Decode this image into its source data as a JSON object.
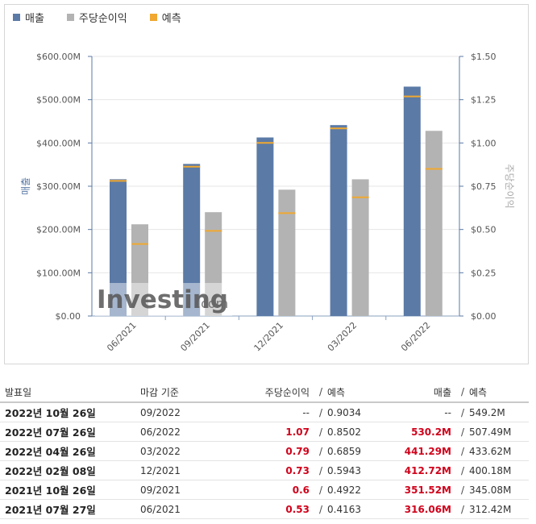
{
  "legend": [
    {
      "label": "매출",
      "color": "#5b7aa6"
    },
    {
      "label": "주당순이익",
      "color": "#b3b3b3"
    },
    {
      "label": "예측",
      "color": "#f0a830"
    }
  ],
  "chart_data": {
    "type": "bar",
    "categories": [
      "06/2021",
      "09/2021",
      "12/2021",
      "03/2022",
      "06/2022"
    ],
    "series": [
      {
        "name": "매출",
        "axis": "left",
        "values": [
          316.06,
          351.52,
          412.72,
          441.29,
          530.2
        ],
        "color": "#5b7aa6"
      },
      {
        "name": "주당순이익",
        "axis": "right",
        "values": [
          0.53,
          0.6,
          0.73,
          0.79,
          1.07
        ],
        "color": "#b3b3b3"
      }
    ],
    "forecast": {
      "name": "예측",
      "color": "#f0a830",
      "revenue": [
        312.42,
        345.08,
        400.18,
        433.62,
        507.49
      ],
      "eps": [
        0.4163,
        0.4922,
        0.5943,
        0.6859,
        0.8502
      ]
    },
    "ylabel_left": "매출",
    "ylabel_right": "주당순이익",
    "ylim_left": [
      0,
      600
    ],
    "ylim_right": [
      0,
      1.5
    ],
    "yticks_left": [
      "$0.00",
      "$100.00M",
      "$200.00M",
      "$300.00M",
      "$400.00M",
      "$500.00M",
      "$600.00M"
    ],
    "yticks_right": [
      "$0.00",
      "$0.25",
      "$0.50",
      "$0.75",
      "$1.00",
      "$1.25",
      "$1.50"
    ],
    "watermark": "Investing",
    "watermark_suffix": ".com"
  },
  "table": {
    "headers": {
      "date": "발표일",
      "period": "마감 기준",
      "eps": "주당순이익",
      "eps_forecast": "예측",
      "revenue": "매출",
      "revenue_forecast": "예측",
      "sep": "/"
    },
    "rows": [
      {
        "date": "2022년 10월 26일",
        "period": "09/2022",
        "eps": "--",
        "eps_forecast": "0.9034",
        "revenue": "--",
        "revenue_forecast": "549.2M",
        "actual": false
      },
      {
        "date": "2022년 07월 26일",
        "period": "06/2022",
        "eps": "1.07",
        "eps_forecast": "0.8502",
        "revenue": "530.2M",
        "revenue_forecast": "507.49M",
        "actual": true
      },
      {
        "date": "2022년 04월 26일",
        "period": "03/2022",
        "eps": "0.79",
        "eps_forecast": "0.6859",
        "revenue": "441.29M",
        "revenue_forecast": "433.62M",
        "actual": true
      },
      {
        "date": "2022년 02월 08일",
        "period": "12/2021",
        "eps": "0.73",
        "eps_forecast": "0.5943",
        "revenue": "412.72M",
        "revenue_forecast": "400.18M",
        "actual": true
      },
      {
        "date": "2021년 10월 26일",
        "period": "09/2021",
        "eps": "0.6",
        "eps_forecast": "0.4922",
        "revenue": "351.52M",
        "revenue_forecast": "345.08M",
        "actual": true
      },
      {
        "date": "2021년 07월 27일",
        "period": "06/2021",
        "eps": "0.53",
        "eps_forecast": "0.4163",
        "revenue": "316.06M",
        "revenue_forecast": "312.42M",
        "actual": true
      }
    ]
  }
}
